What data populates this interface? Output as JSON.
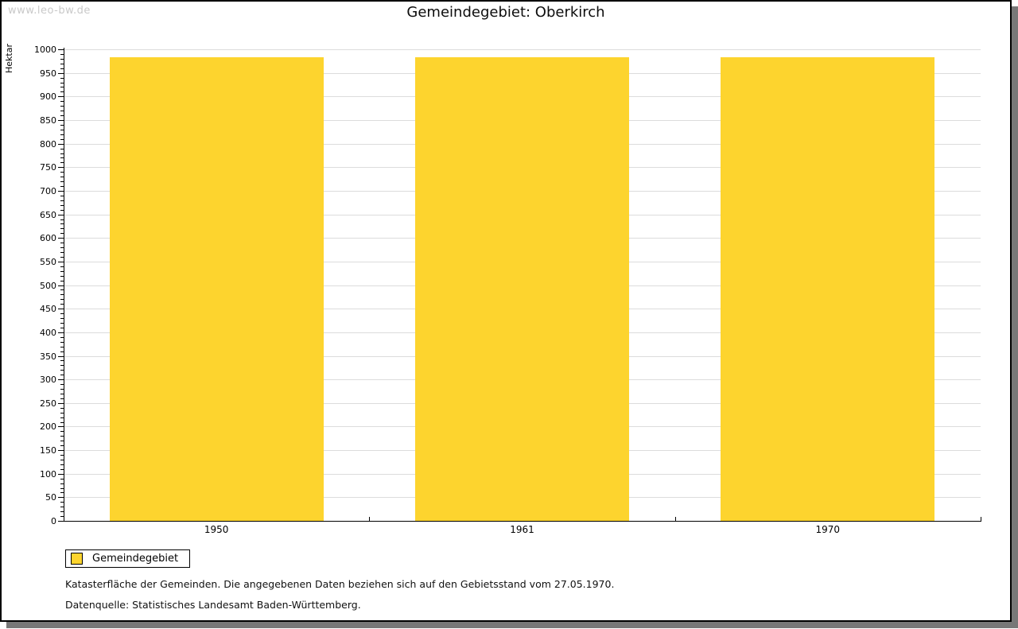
{
  "watermark": "www.leo-bw.de",
  "title": "Gemeindegebiet: Oberkirch",
  "chart_data": {
    "type": "bar",
    "title": "Gemeindegebiet: Oberkirch",
    "categories": [
      "1950",
      "1961",
      "1970"
    ],
    "series": [
      {
        "name": "Gemeindegebiet",
        "values": [
          983,
          983,
          983
        ]
      }
    ],
    "xlabel": "",
    "ylabel": "Hektar",
    "ylim": [
      0,
      1000
    ],
    "ytick_interval": 50,
    "yminor_tick_interval": 10,
    "grid": true,
    "legend_position": "bottom-left",
    "bar_color": "#FDD42E",
    "gridline_color": "#dcdcdc"
  },
  "legend": {
    "label": "Gemeindegebiet",
    "swatch_color": "#FDD42E"
  },
  "footnotes": [
    "Katasterfläche der Gemeinden. Die angegebenen Daten beziehen sich auf den Gebietsstand vom 27.05.1970.",
    "Datenquelle: Statistisches Landesamt Baden-Württemberg."
  ],
  "colors": {
    "bar": "#FDD42E",
    "gridline": "#dcdcdc",
    "axis": "#000000",
    "watermark": "#c9c9c9",
    "frame_border": "#000000",
    "frame_shadow": "#787878",
    "background": "#ffffff"
  }
}
